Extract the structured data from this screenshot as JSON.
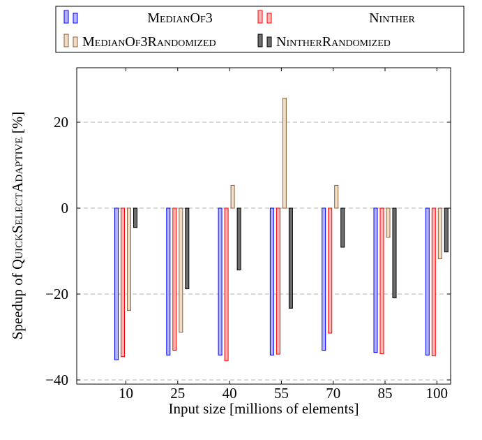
{
  "chart_data": {
    "type": "bar",
    "xlabel": "Input size [millions of elements]",
    "ylabel_prefix": "Speedup of ",
    "ylabel_name": "QuickSelectAdaptive",
    "ylabel_suffix": " [%]",
    "categories": [
      "10",
      "25",
      "40",
      "55",
      "70",
      "85",
      "100"
    ],
    "ylim": [
      -41,
      32
    ],
    "yticks": [
      20,
      0,
      -20,
      -40
    ],
    "ytick_labels": [
      "20",
      "0",
      "−20",
      "−40"
    ],
    "grid": "horizontal-dashed",
    "legend_position": "top",
    "series": [
      {
        "name": "MedianOf3",
        "values": [
          -35.3,
          -34.2,
          -34.2,
          -34.2,
          -33.1,
          -33.6,
          -34.2
        ],
        "fill": "#b3b3ff",
        "stroke": "#0000ff"
      },
      {
        "name": "Ninther",
        "values": [
          -34.6,
          -33.1,
          -35.5,
          -34.0,
          -29.1,
          -33.9,
          -34.4
        ],
        "fill": "#ffb3b3",
        "stroke": "#ff0000"
      },
      {
        "name": "MedianOf3Randomized",
        "values": [
          -23.8,
          -28.9,
          5.3,
          25.6,
          5.3,
          -6.8,
          -11.8
        ],
        "fill": "#f0ddc9",
        "stroke": "#8c6239"
      },
      {
        "name": "NintherRandomized",
        "values": [
          -4.5,
          -18.8,
          -14.4,
          -23.3,
          -9.1,
          -20.9,
          -10.2
        ],
        "fill": "#6e6e6e",
        "stroke": "#000000"
      }
    ]
  }
}
